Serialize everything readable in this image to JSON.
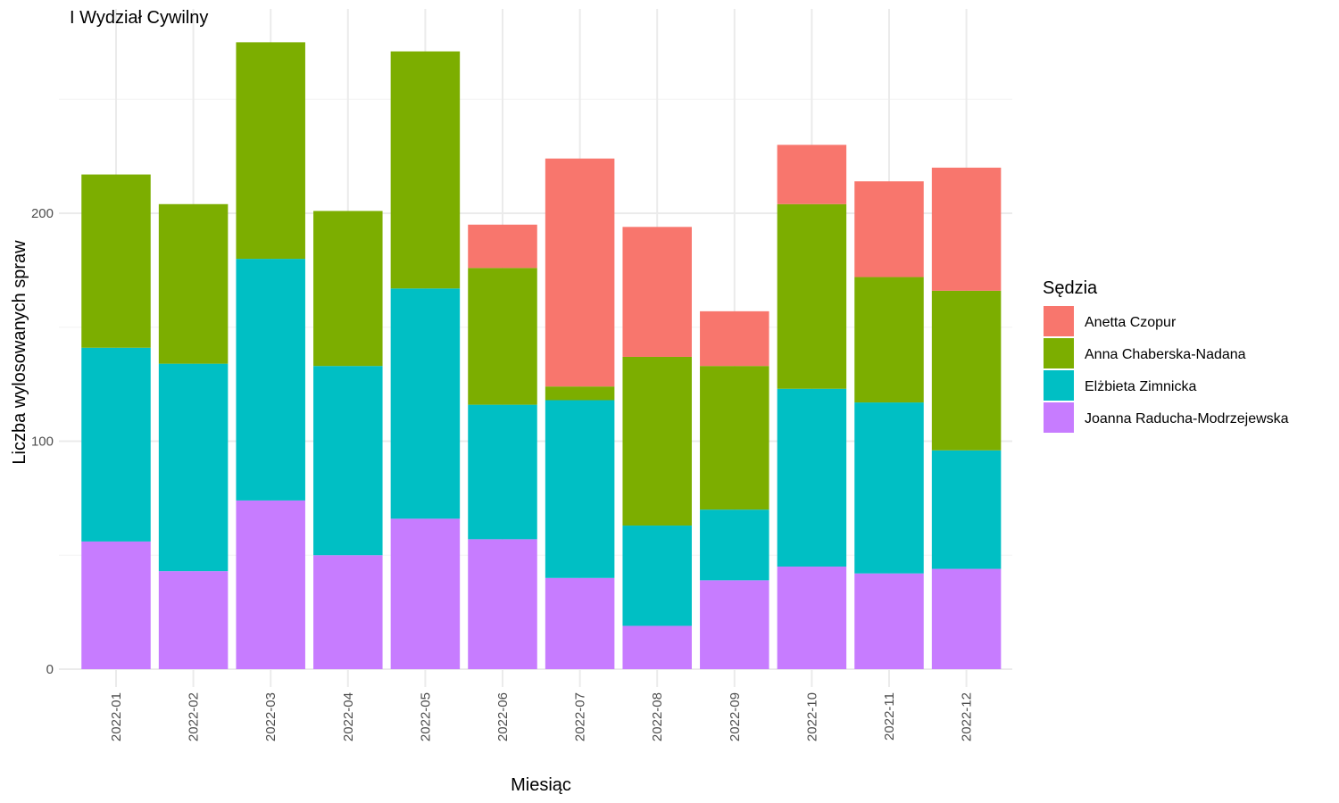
{
  "chart_data": {
    "type": "bar",
    "stacked": true,
    "title": "I Wydział Cywilny",
    "xlabel": "Miesiąc",
    "ylabel": "Liczba wylosowanych spraw",
    "ylim": [
      0,
      280
    ],
    "yticks": [
      0,
      100,
      200
    ],
    "grid": true,
    "legend": {
      "title": "Sędzia",
      "position": "right"
    },
    "categories": [
      "2022-01",
      "2022-02",
      "2022-03",
      "2022-04",
      "2022-05",
      "2022-06",
      "2022-07",
      "2022-08",
      "2022-09",
      "2022-10",
      "2022-11",
      "2022-12"
    ],
    "series": [
      {
        "name": "Joanna Raducha-Modrzejewska",
        "color": "#C77CFF",
        "values": [
          56,
          43,
          74,
          50,
          66,
          57,
          40,
          19,
          39,
          45,
          42,
          44
        ]
      },
      {
        "name": "Elżbieta Zimnicka",
        "color": "#00BFC4",
        "values": [
          85,
          91,
          106,
          83,
          101,
          59,
          78,
          44,
          31,
          78,
          75,
          52
        ]
      },
      {
        "name": "Anna Chaberska-Nadana",
        "color": "#7CAE00",
        "values": [
          76,
          70,
          95,
          68,
          104,
          60,
          6,
          74,
          63,
          81,
          55,
          70
        ]
      },
      {
        "name": "Anetta Czopur",
        "color": "#F8766D",
        "values": [
          0,
          0,
          0,
          0,
          0,
          19,
          100,
          57,
          24,
          26,
          42,
          54
        ]
      }
    ],
    "legend_order": [
      "Anetta Czopur",
      "Anna Chaberska-Nadana",
      "Elżbieta Zimnicka",
      "Joanna Raducha-Modrzejewska"
    ]
  }
}
